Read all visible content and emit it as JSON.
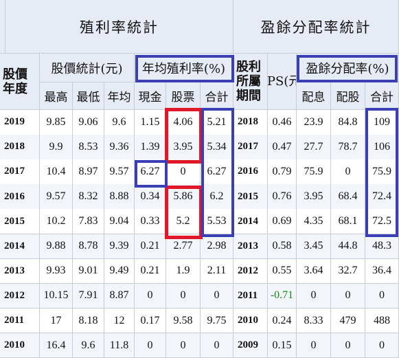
{
  "headers": {
    "yield_title": "殖利率統計",
    "payout_title": "盈餘分配率統計",
    "price_year": "股價年度",
    "price_stats": "股價統計(元)",
    "avg_yield": "年均殖利率(%)",
    "dividend_year": "股利所屬期間",
    "eps": "EPS(元)",
    "payout_ratio": "盈餘分配率(%)",
    "col_high": "最高",
    "col_low": "最低",
    "col_avg": "年均",
    "col_cash": "現金",
    "col_stock": "股票",
    "col_total": "合計",
    "col_payout_cash": "配息",
    "col_payout_stock": "配股",
    "col_payout_total": "合計"
  },
  "rows": [
    [
      "2019",
      "9.85",
      "9.06",
      "9.6",
      "1.15",
      "4.06",
      "5.21",
      "2018",
      "0.46",
      "23.9",
      "84.8",
      "109"
    ],
    [
      "2018",
      "9.9",
      "8.53",
      "9.36",
      "1.39",
      "3.95",
      "5.34",
      "2017",
      "0.47",
      "27.7",
      "78.7",
      "106"
    ],
    [
      "2017",
      "10.4",
      "8.97",
      "9.57",
      "6.27",
      "0",
      "6.27",
      "2016",
      "0.79",
      "75.9",
      "0",
      "75.9"
    ],
    [
      "2016",
      "9.57",
      "8.32",
      "8.88",
      "0.34",
      "5.86",
      "6.2",
      "2015",
      "0.76",
      "3.95",
      "68.4",
      "72.4"
    ],
    [
      "2015",
      "10.2",
      "7.83",
      "9.04",
      "0.33",
      "5.2",
      "5.53",
      "2014",
      "0.69",
      "4.35",
      "68.1",
      "72.5"
    ],
    [
      "2014",
      "9.88",
      "8.78",
      "9.39",
      "0.21",
      "2.77",
      "2.98",
      "2013",
      "0.58",
      "3.45",
      "44.8",
      "48.3"
    ],
    [
      "2013",
      "9.93",
      "9.01",
      "9.49",
      "0.21",
      "1.9",
      "2.11",
      "2012",
      "0.55",
      "3.64",
      "32.7",
      "36.4"
    ],
    [
      "2012",
      "10.15",
      "7.91",
      "8.87",
      "0",
      "0",
      "0",
      "2011",
      "-0.71",
      "0",
      "0",
      "0"
    ],
    [
      "2011",
      "17",
      "8.18",
      "12",
      "0.17",
      "9.58",
      "9.75",
      "2010",
      "0.24",
      "8.33",
      "479",
      "488"
    ],
    [
      "2010",
      "16.4",
      "9.6",
      "11.8",
      "0",
      "0",
      "0",
      "2009",
      "0.15",
      "0",
      "0",
      "0"
    ]
  ],
  "colors": {
    "highlight_red": "#e0182a",
    "highlight_blue": "#3c3fb4",
    "negative": "#1a8a1a"
  }
}
